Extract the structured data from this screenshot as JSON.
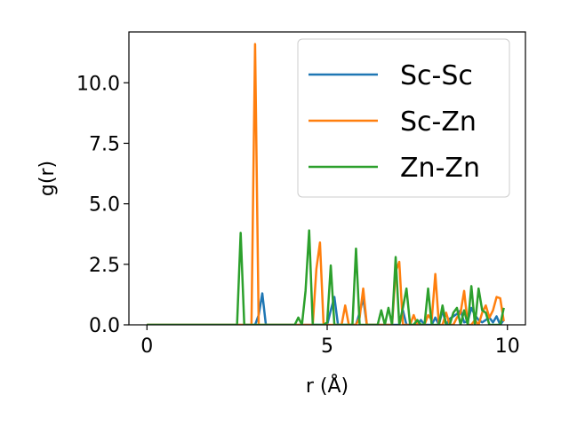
{
  "chart_data": {
    "type": "line",
    "xlabel": "r (Å)",
    "ylabel": "g(r)",
    "xlim": [
      -0.5,
      10.5
    ],
    "ylim": [
      0,
      12.1
    ],
    "xticks": [
      0,
      5,
      10
    ],
    "xtick_labels": [
      "0",
      "5",
      "10"
    ],
    "yticks": [
      0,
      2.5,
      5,
      7.5,
      10
    ],
    "ytick_labels": [
      "0.0",
      "2.5",
      "5.0",
      "7.5",
      "10.0"
    ],
    "grid": false,
    "legend_position": "top-right",
    "x": [
      0.0,
      0.1,
      0.2,
      0.3,
      0.4,
      0.5,
      0.6,
      0.7,
      0.8,
      0.9,
      1.0,
      1.1,
      1.2,
      1.3,
      1.4,
      1.5,
      1.6,
      1.7,
      1.8,
      1.9,
      2.0,
      2.1,
      2.2,
      2.3,
      2.4,
      2.5,
      2.6,
      2.7,
      2.8,
      2.9,
      3.0,
      3.1,
      3.2,
      3.3,
      3.4,
      3.5,
      3.6,
      3.7,
      3.8,
      3.9,
      4.0,
      4.1,
      4.2,
      4.3,
      4.4,
      4.5,
      4.6,
      4.7,
      4.8,
      4.9,
      5.0,
      5.1,
      5.2,
      5.3,
      5.4,
      5.5,
      5.6,
      5.7,
      5.8,
      5.9,
      6.0,
      6.1,
      6.2,
      6.3,
      6.4,
      6.5,
      6.6,
      6.7,
      6.8,
      6.9,
      7.0,
      7.1,
      7.2,
      7.3,
      7.4,
      7.5,
      7.6,
      7.7,
      7.8,
      7.9,
      8.0,
      8.1,
      8.2,
      8.3,
      8.4,
      8.5,
      8.6,
      8.7,
      8.8,
      8.9,
      9.0,
      9.1,
      9.2,
      9.3,
      9.4,
      9.5,
      9.6,
      9.7,
      9.8,
      9.9
    ],
    "series": [
      {
        "name": "Sc-Sc",
        "color": "#1f77b4",
        "values": [
          0,
          0,
          0,
          0,
          0,
          0,
          0,
          0,
          0,
          0,
          0,
          0,
          0,
          0,
          0,
          0,
          0,
          0,
          0,
          0,
          0,
          0,
          0,
          0,
          0,
          0,
          0,
          0,
          0,
          0,
          0,
          0.4,
          1.3,
          0,
          0,
          0,
          0,
          0,
          0,
          0,
          0,
          0,
          0,
          0,
          0,
          0,
          0,
          0,
          0,
          0,
          0,
          0.6,
          1.15,
          0,
          0,
          0,
          0,
          0,
          0,
          0.5,
          1.1,
          0,
          0,
          0,
          0,
          0,
          0,
          0,
          0,
          0,
          0,
          0.6,
          0,
          0,
          0,
          0,
          0.2,
          0,
          0,
          0,
          0.3,
          0,
          0.6,
          0,
          0.25,
          0.35,
          0.45,
          0.6,
          0.1,
          0.15,
          0.7,
          0.4,
          0.2,
          0.1,
          0.2,
          0.3,
          0.1,
          0.35,
          0,
          0.2
        ]
      },
      {
        "name": "Sc-Zn",
        "color": "#ff7f0e",
        "values": [
          0,
          0,
          0,
          0,
          0,
          0,
          0,
          0,
          0,
          0,
          0,
          0,
          0,
          0,
          0,
          0,
          0,
          0,
          0,
          0,
          0,
          0,
          0,
          0,
          0,
          0,
          0,
          0,
          0,
          0,
          11.6,
          0,
          0,
          0,
          0,
          0,
          0,
          0,
          0,
          0,
          0,
          0,
          0,
          0,
          0,
          0,
          0,
          2.3,
          3.4,
          0,
          0,
          0,
          0,
          0,
          0,
          0.8,
          0,
          0,
          0,
          0.3,
          1.5,
          0,
          0,
          0,
          0,
          0,
          0,
          0,
          0,
          2.2,
          2.6,
          0,
          0,
          0,
          0.4,
          0,
          0,
          0,
          0.4,
          0.2,
          2.1,
          0,
          0,
          0.5,
          0,
          0,
          0.3,
          0.5,
          1.4,
          0,
          0,
          0.2,
          0,
          0.5,
          0.8,
          0.3,
          0.6,
          1.15,
          1.1,
          0.15
        ]
      },
      {
        "name": "Zn-Zn",
        "color": "#2ca02c",
        "values": [
          0,
          0,
          0,
          0,
          0,
          0,
          0,
          0,
          0,
          0,
          0,
          0,
          0,
          0,
          0,
          0,
          0,
          0,
          0,
          0,
          0,
          0,
          0,
          0,
          0,
          0,
          3.8,
          0,
          0,
          0,
          0,
          0,
          0,
          0,
          0,
          0,
          0,
          0,
          0,
          0,
          0,
          0,
          0.3,
          0,
          1.4,
          3.9,
          0,
          0,
          0,
          0,
          0.1,
          2.45,
          0,
          0,
          0,
          0,
          0,
          0,
          3.15,
          0,
          0,
          0,
          0,
          0,
          0,
          0.6,
          0,
          0.7,
          0,
          2.8,
          0,
          0.7,
          1.5,
          0,
          0,
          0.2,
          0,
          0,
          1.5,
          0,
          0,
          0,
          0.8,
          0,
          0,
          0.5,
          0.7,
          0,
          0.6,
          0,
          1.6,
          0,
          1.5,
          0.6,
          0.5,
          0,
          0,
          0,
          0,
          0.7
        ]
      }
    ]
  }
}
